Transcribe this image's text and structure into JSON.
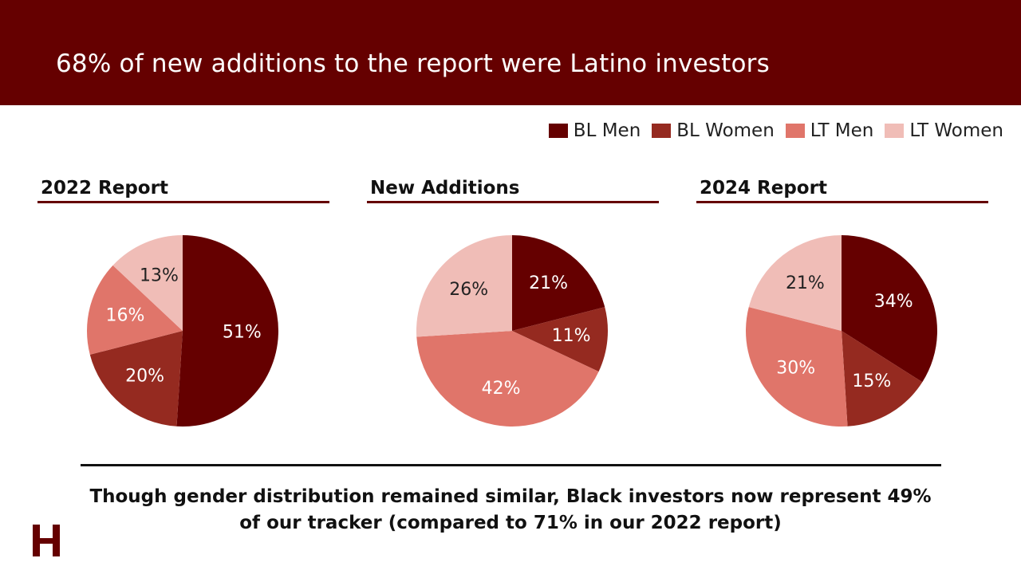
{
  "header": {
    "title": "68% of new additions to the report were Latino investors"
  },
  "legend": [
    {
      "label": "BL Men",
      "color": "#650000"
    },
    {
      "label": "BL Women",
      "color": "#952a20"
    },
    {
      "label": "LT Men",
      "color": "#e0756a"
    },
    {
      "label": "LT Women",
      "color": "#f0bdb7"
    }
  ],
  "chart_data": [
    {
      "type": "pie",
      "title": "2022 Report",
      "categories": [
        "BL Men",
        "BL Women",
        "LT Men",
        "LT Women"
      ],
      "values": [
        51,
        20,
        16,
        13
      ],
      "labels": [
        "51%",
        "20%",
        "16%",
        "13%"
      ]
    },
    {
      "type": "pie",
      "title": "New Additions",
      "categories": [
        "BL Men",
        "BL Women",
        "LT Men",
        "LT Women"
      ],
      "values": [
        21,
        11,
        42,
        26
      ],
      "labels": [
        "21%",
        "11%",
        "42%",
        "26%"
      ]
    },
    {
      "type": "pie",
      "title": "2024 Report",
      "categories": [
        "BL Men",
        "BL Women",
        "LT Men",
        "LT Women"
      ],
      "values": [
        34,
        15,
        30,
        21
      ],
      "labels": [
        "34%",
        "15%",
        "30%",
        "21%"
      ]
    }
  ],
  "footer": {
    "line1": "Though gender distribution remained similar, Black investors now represent 49%",
    "line2": "of our tracker (compared to 71% in our 2022 report)"
  },
  "logo": {
    "icon": "h-logo-icon",
    "color": "#650000"
  }
}
